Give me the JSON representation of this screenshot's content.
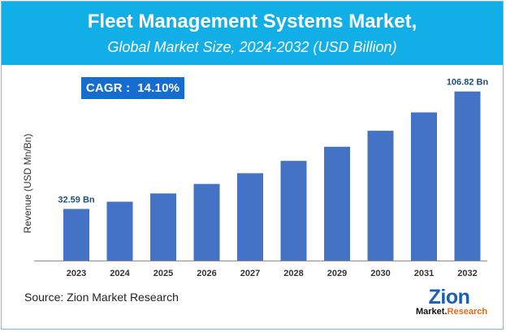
{
  "header": {
    "title": "Fleet Management Systems Market,",
    "subtitle": "Global Market Size, 2024-2032 (USD Billion)"
  },
  "cagr": {
    "label": "CAGR :",
    "value": "14.10%"
  },
  "source": "Source: Zion Market Research",
  "logo": {
    "brand": "Zion",
    "sub_prefix": "Market.",
    "sub_suffix": "Research"
  },
  "colors": {
    "header_bg": "#12aee8",
    "bar": "#4472c4",
    "cagr_bg": "#156dcf",
    "value_label": "#1f4e79"
  },
  "chart_data": {
    "type": "bar",
    "ylabel": "Revenue (USD Mn/Bn)",
    "xlabel": "",
    "categories": [
      "2023",
      "2024",
      "2025",
      "2026",
      "2027",
      "2028",
      "2029",
      "2030",
      "2031",
      "2032"
    ],
    "values": [
      32.59,
      37.2,
      42.4,
      48.4,
      55.2,
      63.0,
      71.9,
      82.0,
      93.6,
      106.82
    ],
    "data_labels": [
      {
        "index": 0,
        "text": "32.59 Bn"
      },
      {
        "index": 9,
        "text": "106.82 Bn"
      }
    ],
    "ylim": [
      0,
      120
    ],
    "grid": false
  }
}
